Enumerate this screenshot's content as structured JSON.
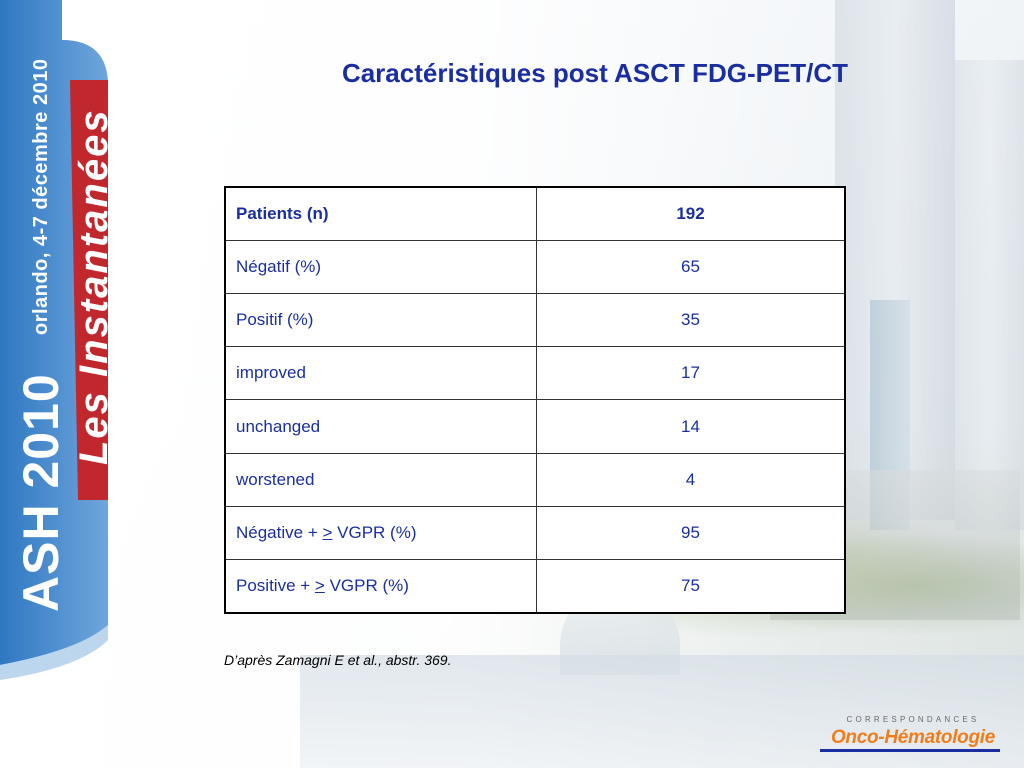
{
  "slide": {
    "title": "Caractéristiques post ASCT FDG-PET/CT",
    "footnote": "D’après Zamagni E et al., abstr. 369."
  },
  "banner": {
    "event": "ASH 2010",
    "series": "Les Instantanées",
    "location_dates": "orlando, 4-7 décembre 2010",
    "colors": {
      "blue": "#2a6fb8",
      "red": "#c0282d",
      "light_blue": "#7fb3e0"
    }
  },
  "table": {
    "header": {
      "label": "Patients (n)",
      "value": "192"
    },
    "rows": [
      {
        "label_pre": "Négatif (%)",
        "label_ul": "",
        "label_post": "",
        "value": "65"
      },
      {
        "label_pre": "Positif (%)",
        "label_ul": "",
        "label_post": "",
        "value": "35"
      },
      {
        "label_pre": "improved",
        "label_ul": "",
        "label_post": "",
        "value": "17"
      },
      {
        "label_pre": "unchanged",
        "label_ul": "",
        "label_post": "",
        "value": "14"
      },
      {
        "label_pre": "worstened",
        "label_ul": "",
        "label_post": "",
        "value": "4"
      },
      {
        "label_pre": "Négative + ",
        "label_ul": ">",
        "label_post": " VGPR (%)",
        "value": "95"
      },
      {
        "label_pre": "Positive + ",
        "label_ul": ">",
        "label_post": " VGPR (%)",
        "value": "75"
      }
    ]
  },
  "logo": {
    "top_text": "CORRESPONDANCES",
    "main_text": "Onco-Hématologie",
    "color": "#ef7d1a"
  }
}
